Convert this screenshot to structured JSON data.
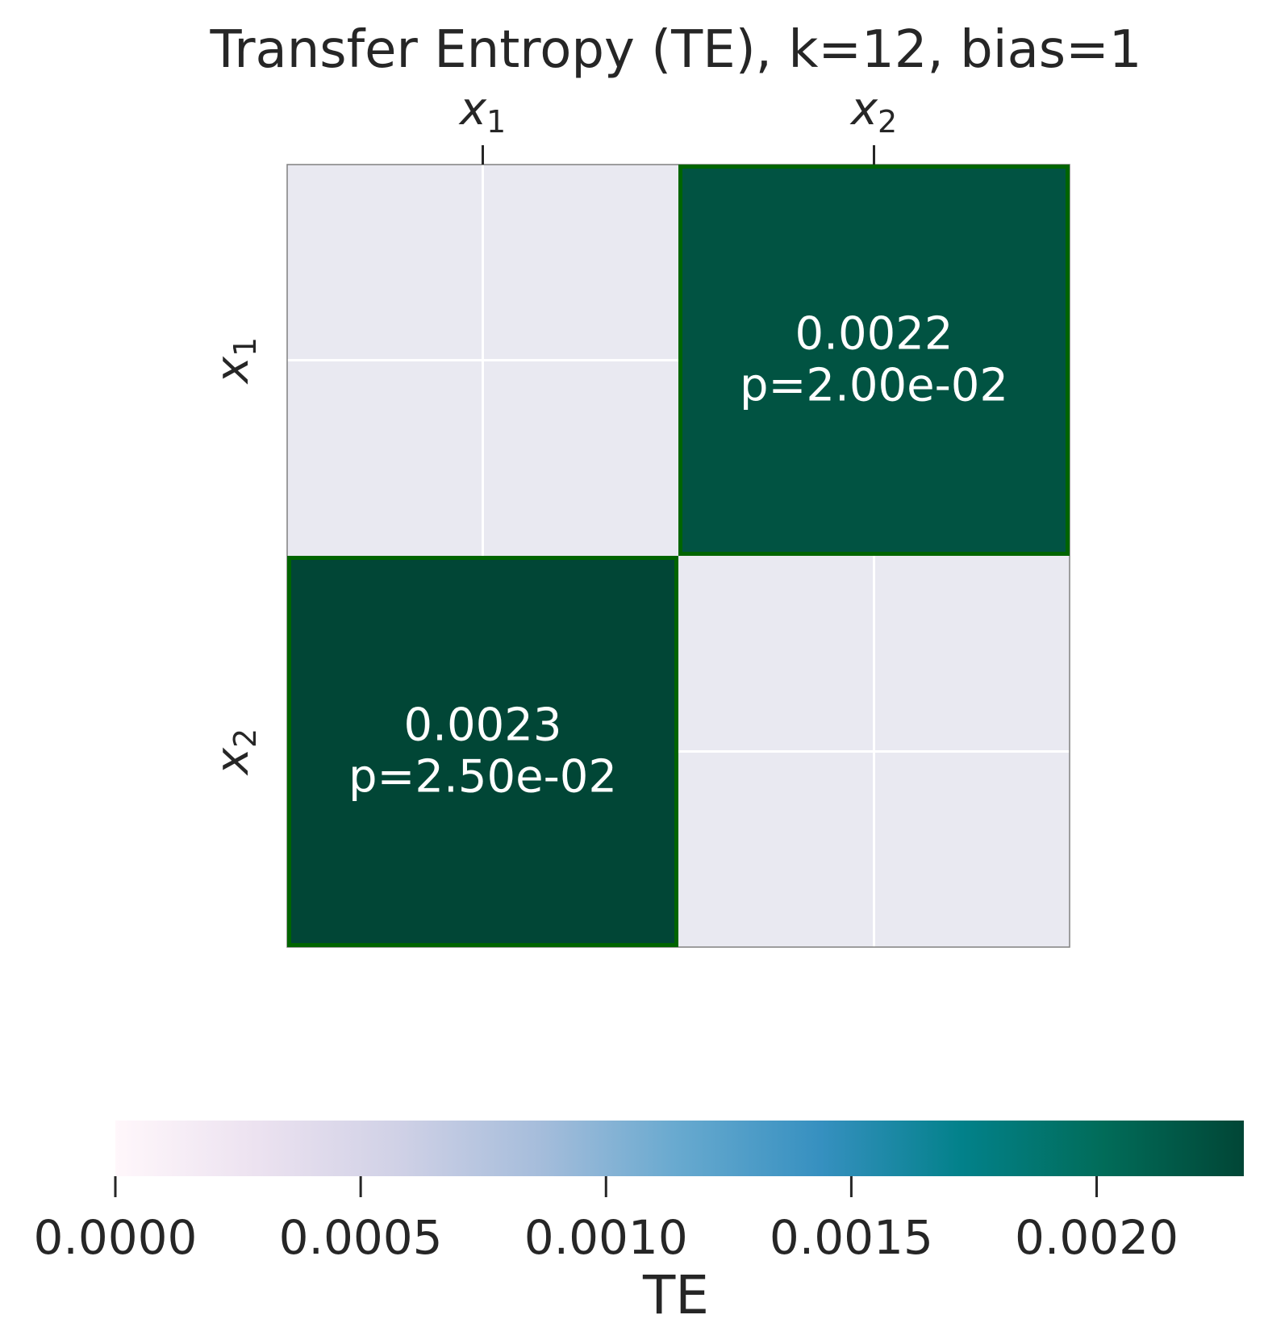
{
  "chart_data": {
    "type": "heatmap",
    "title": "Transfer Entropy (TE), k=12, bias=1",
    "row_labels": [
      {
        "base": "x",
        "sub": "1"
      },
      {
        "base": "x",
        "sub": "2"
      }
    ],
    "col_labels": [
      {
        "base": "x",
        "sub": "1"
      },
      {
        "base": "x",
        "sub": "2"
      }
    ],
    "cells": [
      {
        "row": 0,
        "col": 0,
        "value": null,
        "label": "",
        "p_label": "",
        "significant": false
      },
      {
        "row": 0,
        "col": 1,
        "value": 0.0022,
        "label": "0.0022",
        "p_label": "p=2.00e-02",
        "significant": true
      },
      {
        "row": 1,
        "col": 0,
        "value": 0.0023,
        "label": "0.0023",
        "p_label": "p=2.50e-02",
        "significant": true
      },
      {
        "row": 1,
        "col": 1,
        "value": null,
        "label": "",
        "p_label": "",
        "significant": false
      }
    ],
    "colorbar": {
      "label": "TE",
      "range": [
        0,
        0.0023
      ],
      "ticks": [
        0,
        0.0005,
        0.001,
        0.0015,
        0.002
      ],
      "tick_labels": [
        "0.0000",
        "0.0005",
        "0.0010",
        "0.0015",
        "0.0020"
      ],
      "orientation": "horizontal"
    },
    "colors": {
      "cmap": [
        "#fff7fb",
        "#ece2f0",
        "#d0d1e6",
        "#a6bddb",
        "#67a9cf",
        "#3690c0",
        "#02818a",
        "#016c59",
        "#014636"
      ],
      "empty_cell": "#e9e9f1",
      "significant_border": "#006400",
      "text": "#ffffff"
    }
  }
}
